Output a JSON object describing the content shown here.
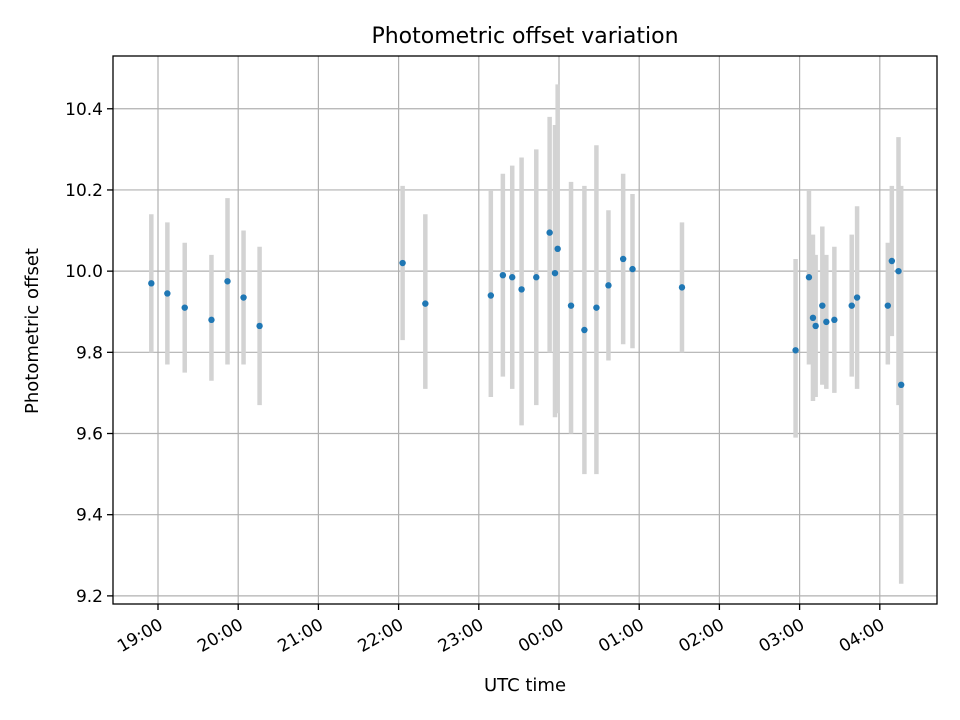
{
  "chart_data": {
    "type": "scatter",
    "title": "Photometric offset variation",
    "xlabel": "UTC time",
    "ylabel": "Photometric offset",
    "x_tick_labels": [
      "19:00",
      "20:00",
      "21:00",
      "22:00",
      "23:00",
      "00:00",
      "01:00",
      "02:00",
      "03:00",
      "04:00"
    ],
    "y_ticks": [
      9.2,
      9.4,
      9.6,
      9.8,
      10.0,
      10.2,
      10.4
    ],
    "y_tick_labels": [
      "9.2",
      "9.4",
      "9.6",
      "9.8",
      "10.0",
      "10.2",
      "10.4"
    ],
    "ylim": [
      9.18,
      10.53
    ],
    "grid": true,
    "colors": {
      "points": "#1f77b4",
      "error_bars": "#d3d3d3",
      "grid": "#b0b0b0"
    },
    "points": [
      {
        "t": "18:55",
        "y": 9.97,
        "lo": 9.8,
        "hi": 10.14
      },
      {
        "t": "19:07",
        "y": 9.945,
        "lo": 9.77,
        "hi": 10.12
      },
      {
        "t": "19:20",
        "y": 9.91,
        "lo": 9.75,
        "hi": 10.07
      },
      {
        "t": "19:40",
        "y": 9.88,
        "lo": 9.73,
        "hi": 10.04
      },
      {
        "t": "19:52",
        "y": 9.975,
        "lo": 9.77,
        "hi": 10.18
      },
      {
        "t": "20:04",
        "y": 9.935,
        "lo": 9.77,
        "hi": 10.1
      },
      {
        "t": "20:16",
        "y": 9.865,
        "lo": 9.67,
        "hi": 10.06
      },
      {
        "t": "22:03",
        "y": 10.02,
        "lo": 9.83,
        "hi": 10.21
      },
      {
        "t": "22:20",
        "y": 9.92,
        "lo": 9.71,
        "hi": 10.14
      },
      {
        "t": "23:09",
        "y": 9.94,
        "lo": 9.69,
        "hi": 10.2
      },
      {
        "t": "23:18",
        "y": 9.99,
        "lo": 9.74,
        "hi": 10.24
      },
      {
        "t": "23:25",
        "y": 9.985,
        "lo": 9.71,
        "hi": 10.26
      },
      {
        "t": "23:32",
        "y": 9.955,
        "lo": 9.62,
        "hi": 10.28
      },
      {
        "t": "23:43",
        "y": 9.985,
        "lo": 9.67,
        "hi": 10.3
      },
      {
        "t": "23:53",
        "y": 10.095,
        "lo": 9.8,
        "hi": 10.38
      },
      {
        "t": "23:57",
        "y": 9.995,
        "lo": 9.64,
        "hi": 10.36
      },
      {
        "t": "23:59",
        "y": 10.055,
        "lo": 9.65,
        "hi": 10.46
      },
      {
        "t": "00:09",
        "y": 9.915,
        "lo": 9.6,
        "hi": 10.22
      },
      {
        "t": "00:19",
        "y": 9.855,
        "lo": 9.5,
        "hi": 10.21
      },
      {
        "t": "00:28",
        "y": 9.91,
        "lo": 9.5,
        "hi": 10.31
      },
      {
        "t": "00:37",
        "y": 9.965,
        "lo": 9.78,
        "hi": 10.15
      },
      {
        "t": "00:48",
        "y": 10.03,
        "lo": 9.82,
        "hi": 10.24
      },
      {
        "t": "00:55",
        "y": 10.005,
        "lo": 9.81,
        "hi": 10.19
      },
      {
        "t": "01:32",
        "y": 9.96,
        "lo": 9.8,
        "hi": 10.12
      },
      {
        "t": "02:57",
        "y": 9.805,
        "lo": 9.59,
        "hi": 10.03
      },
      {
        "t": "03:07",
        "y": 9.985,
        "lo": 9.77,
        "hi": 10.2
      },
      {
        "t": "03:10",
        "y": 9.885,
        "lo": 9.68,
        "hi": 10.09
      },
      {
        "t": "03:12",
        "y": 9.865,
        "lo": 9.69,
        "hi": 10.04
      },
      {
        "t": "03:17",
        "y": 9.915,
        "lo": 9.72,
        "hi": 10.11
      },
      {
        "t": "03:20",
        "y": 9.875,
        "lo": 9.71,
        "hi": 10.04
      },
      {
        "t": "03:26",
        "y": 9.88,
        "lo": 9.7,
        "hi": 10.06
      },
      {
        "t": "03:39",
        "y": 9.915,
        "lo": 9.74,
        "hi": 10.09
      },
      {
        "t": "03:43",
        "y": 9.935,
        "lo": 9.71,
        "hi": 10.16
      },
      {
        "t": "04:06",
        "y": 9.915,
        "lo": 9.77,
        "hi": 10.07
      },
      {
        "t": "04:09",
        "y": 10.025,
        "lo": 9.84,
        "hi": 10.21
      },
      {
        "t": "04:14",
        "y": 10.0,
        "lo": 9.67,
        "hi": 10.33
      },
      {
        "t": "04:16",
        "y": 9.72,
        "lo": 9.23,
        "hi": 10.21
      }
    ]
  }
}
